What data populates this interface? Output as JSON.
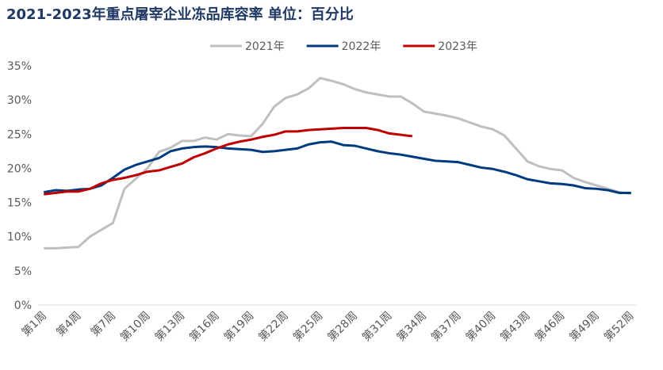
{
  "chart_data": {
    "type": "line",
    "title": "2021-2023年重点屠宰企业冻品库容率  单位：百分比",
    "categories": [
      "第1周",
      null,
      null,
      "第4周",
      null,
      null,
      "第7周",
      null,
      null,
      "第10周",
      null,
      null,
      "第13周",
      null,
      null,
      "第16周",
      null,
      null,
      "第19周",
      null,
      null,
      "第22周",
      null,
      null,
      "第25周",
      null,
      null,
      "第28周",
      null,
      null,
      "第31周",
      null,
      null,
      "第34周",
      null,
      null,
      "第37周",
      null,
      null,
      "第40周",
      null,
      null,
      "第43周",
      null,
      null,
      "第46周",
      null,
      null,
      "第49周",
      null,
      null,
      "第52周"
    ],
    "series": [
      {
        "name": "2021年",
        "color": "#bfbfbf",
        "values": [
          8.3,
          8.3,
          8.4,
          8.5,
          10.0,
          11.0,
          12.0,
          17.0,
          18.5,
          20.0,
          22.4,
          23.0,
          24.0,
          24.0,
          24.5,
          24.2,
          25.0,
          24.8,
          24.7,
          26.5,
          29.0,
          30.3,
          30.8,
          31.7,
          33.2,
          32.8,
          32.3,
          31.6,
          31.1,
          30.8,
          30.5,
          30.5,
          29.5,
          28.3,
          28.0,
          27.7,
          27.3,
          26.7,
          26.1,
          25.7,
          24.8,
          22.9,
          21.0,
          20.3,
          19.9,
          19.7,
          18.6,
          18.0,
          17.5,
          17.0,
          16.5,
          16.3
        ]
      },
      {
        "name": "2022年",
        "color": "#003a80",
        "values": [
          16.5,
          16.8,
          16.7,
          16.9,
          17.0,
          17.5,
          18.6,
          19.8,
          20.5,
          21.0,
          21.5,
          22.5,
          22.9,
          23.1,
          23.2,
          23.1,
          22.9,
          22.8,
          22.7,
          22.4,
          22.5,
          22.7,
          22.9,
          23.5,
          23.8,
          23.9,
          23.4,
          23.3,
          22.9,
          22.5,
          22.2,
          22.0,
          21.7,
          21.4,
          21.1,
          21.0,
          20.9,
          20.5,
          20.1,
          19.9,
          19.5,
          19.0,
          18.4,
          18.1,
          17.8,
          17.7,
          17.5,
          17.1,
          17.0,
          16.8,
          16.4,
          16.4
        ]
      },
      {
        "name": "2023年",
        "color": "#c00000",
        "values": [
          16.2,
          16.4,
          16.6,
          16.6,
          17.0,
          17.8,
          18.3,
          18.6,
          19.0,
          19.5,
          19.7,
          20.2,
          20.7,
          21.6,
          22.2,
          22.9,
          23.5,
          23.9,
          24.2,
          24.6,
          24.9,
          25.4,
          25.4,
          25.6,
          25.7,
          25.8,
          25.9,
          25.9,
          25.9,
          25.6,
          25.1,
          24.9,
          24.7,
          null,
          null,
          null,
          null,
          null,
          null,
          null,
          null,
          null,
          null,
          null,
          null,
          null,
          null,
          null,
          null,
          null,
          null,
          null
        ]
      }
    ],
    "ylim": [
      0,
      35
    ],
    "yticks": [
      {
        "value": 0,
        "label": "0%"
      },
      {
        "value": 5,
        "label": "5%"
      },
      {
        "value": 10,
        "label": "10%"
      },
      {
        "value": 15,
        "label": "15%"
      },
      {
        "value": 20,
        "label": "20%"
      },
      {
        "value": 25,
        "label": "25%"
      },
      {
        "value": 30,
        "label": "30%"
      },
      {
        "value": 35,
        "label": "35%"
      }
    ],
    "legend": "top"
  }
}
